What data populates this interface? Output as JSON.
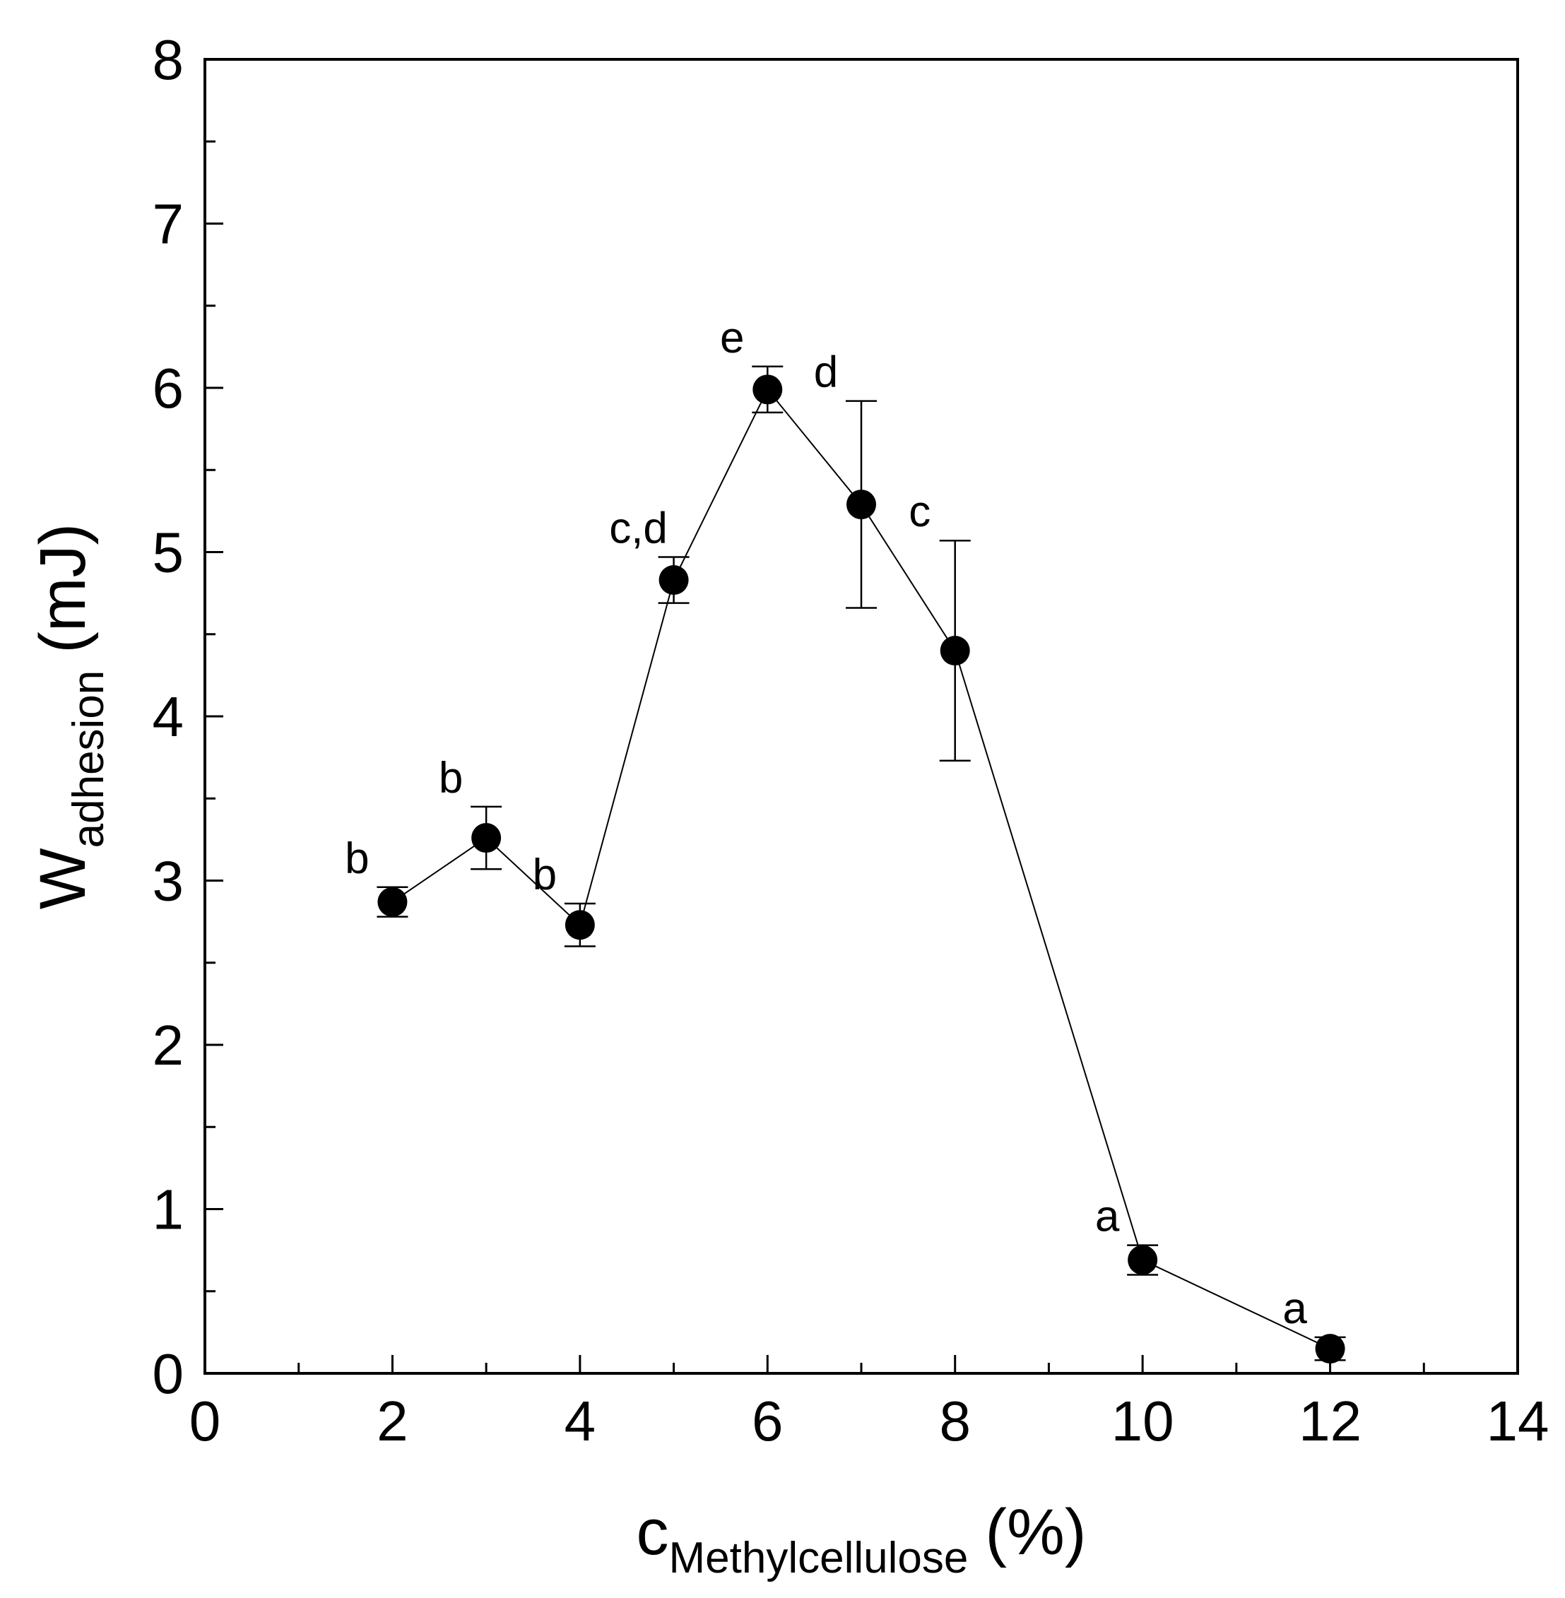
{
  "chart_data": {
    "type": "scatter",
    "title": "",
    "xlabel": {
      "main": "c",
      "subscript": "Methylcellulose",
      "unit": "(%)"
    },
    "ylabel": {
      "main": "W",
      "subscript": "adhesion",
      "unit": "(mJ)"
    },
    "xlim": [
      0,
      14
    ],
    "ylim": [
      0,
      8
    ],
    "xticks": [
      0,
      2,
      4,
      6,
      8,
      10,
      12,
      14
    ],
    "yticks": [
      0,
      1,
      2,
      3,
      4,
      5,
      6,
      7,
      8
    ],
    "grid": false,
    "connected": true,
    "series": [
      {
        "name": "W_adhesion",
        "points": [
          {
            "x": 2,
            "y": 2.87,
            "err": 0.09,
            "label": "b"
          },
          {
            "x": 3,
            "y": 3.26,
            "err": 0.19,
            "label": "b"
          },
          {
            "x": 4,
            "y": 2.73,
            "err": 0.13,
            "label": "b"
          },
          {
            "x": 5,
            "y": 4.83,
            "err": 0.14,
            "label": "c,d"
          },
          {
            "x": 6,
            "y": 5.99,
            "err": 0.14,
            "label": "e"
          },
          {
            "x": 7,
            "y": 5.29,
            "err": 0.63,
            "label": "d"
          },
          {
            "x": 8,
            "y": 4.4,
            "err": 0.67,
            "label": "c"
          },
          {
            "x": 10,
            "y": 0.69,
            "err": 0.09,
            "label": "a"
          },
          {
            "x": 12,
            "y": 0.15,
            "err": 0.07,
            "label": "a"
          }
        ]
      }
    ]
  }
}
